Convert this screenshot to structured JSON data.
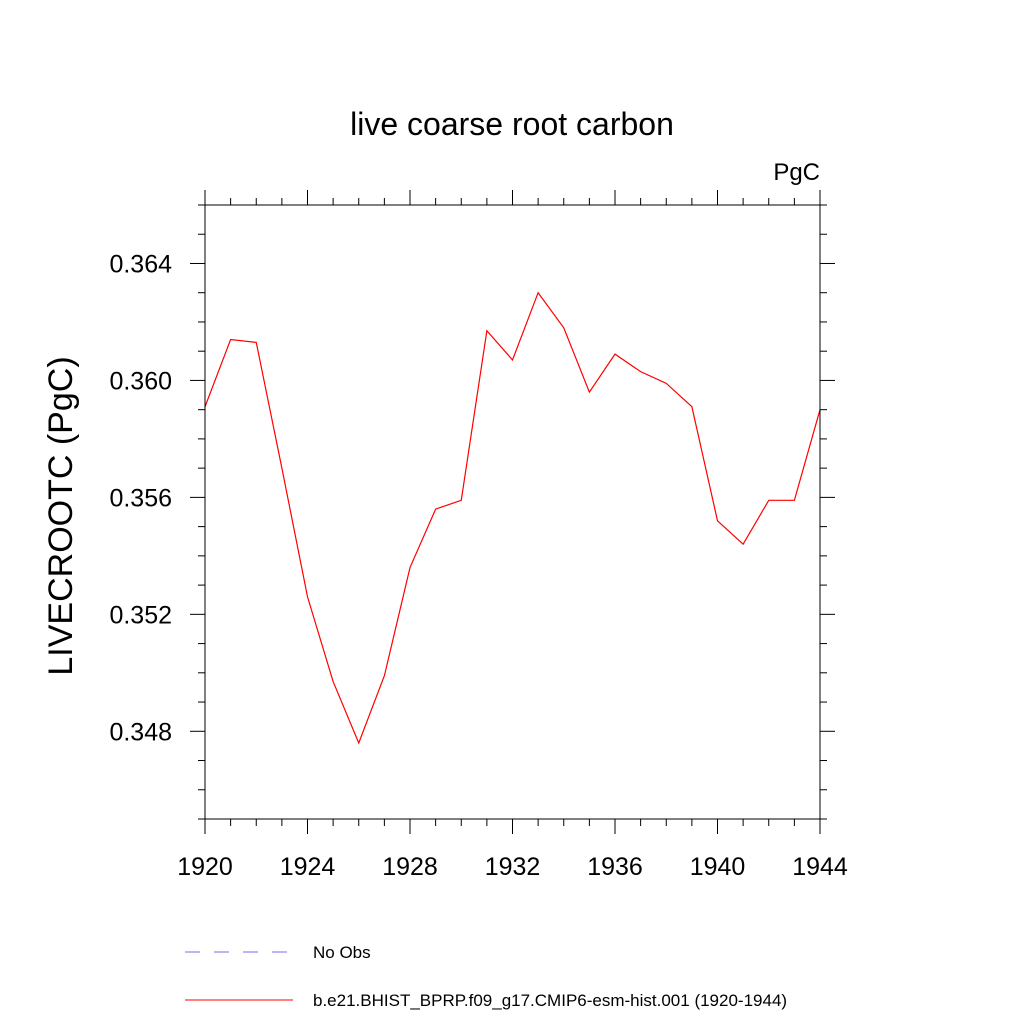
{
  "chart_data": {
    "type": "line",
    "title": "live coarse root carbon",
    "units": "PgC",
    "xlabel": "",
    "ylabel": "LIVECROOTC  (PgC)",
    "xlim": [
      1920,
      1944
    ],
    "ylim": [
      0.345,
      0.366
    ],
    "x_ticks": [
      "1920",
      "1924",
      "1928",
      "1932",
      "1936",
      "1940",
      "1944"
    ],
    "y_ticks": [
      "0.348",
      "0.352",
      "0.356",
      "0.360",
      "0.364"
    ],
    "grid": false,
    "legend_position": "bottom",
    "x": [
      1920,
      1921,
      1922,
      1923,
      1924,
      1925,
      1926,
      1927,
      1928,
      1929,
      1930,
      1931,
      1932,
      1933,
      1934,
      1935,
      1936,
      1937,
      1938,
      1939,
      1940,
      1941,
      1942,
      1943,
      1944
    ],
    "series": [
      {
        "name": "b.e21.BHIST_BPRP.f09_g17.CMIP6-esm-hist.001 (1920-1944)",
        "color": "#ff0000",
        "style": "solid",
        "values": [
          0.3591,
          0.3614,
          0.3613,
          0.357,
          0.3526,
          0.3497,
          0.3476,
          0.3499,
          0.3536,
          0.3556,
          0.3559,
          0.3617,
          0.3607,
          0.363,
          0.3618,
          0.3596,
          0.3609,
          0.3603,
          0.3599,
          0.3591,
          0.3552,
          0.3544,
          0.3559,
          0.3559,
          0.359
        ]
      }
    ],
    "legend": [
      {
        "label": "No Obs",
        "color": "#7b68ee",
        "style": "dashed"
      },
      {
        "label": "b.e21.BHIST_BPRP.f09_g17.CMIP6-esm-hist.001 (1920-1944)",
        "color": "#ff0000",
        "style": "solid"
      }
    ]
  }
}
